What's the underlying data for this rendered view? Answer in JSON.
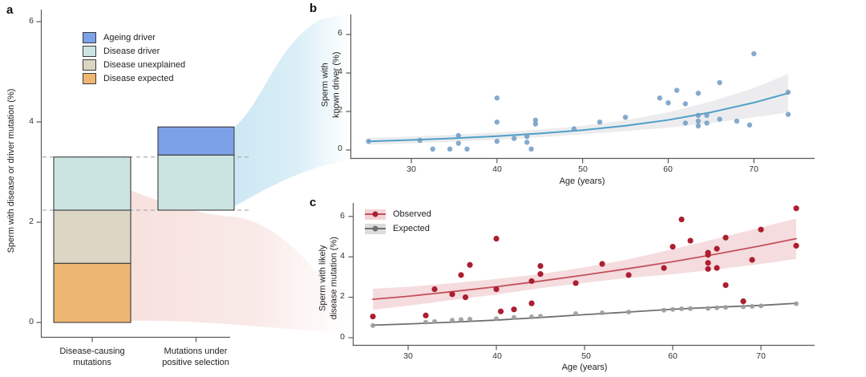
{
  "colors": {
    "ageing_driver": "#7CA1E8",
    "disease_driver": "#CBE4E2",
    "disease_unexplained": "#DBD5C4",
    "disease_expected": "#EDB671",
    "bar_border": "#3B3B3B",
    "axis": "#5A5A5A",
    "dashed_line": "#9C9C9C",
    "blue_line": "#4E9FC9",
    "blue_point": "#6E9BC4",
    "blue_band": "#E7E7EA",
    "red_line": "#C4515C",
    "red_point": "#AB1F30",
    "red_band": "#EDBFC3",
    "expected_line": "#6F6F6F",
    "expected_point": "#9B9B9B",
    "flow_blue": "#C3E4F2",
    "flow_pink": "#F5DCD8"
  },
  "panel_a": {
    "label": "a",
    "y_label": "Sperm with disease or driver mutation (%)",
    "y_ticks": [
      0,
      2,
      4,
      6
    ],
    "x_labels": [
      "Disease-causing\nmutations",
      "Mutations under\npositive selection"
    ],
    "legend": [
      {
        "label": "Ageing driver",
        "color": "#7CA1E8"
      },
      {
        "label": "Disease driver",
        "color": "#CBE4E2"
      },
      {
        "label": "Disease unexplained",
        "color": "#DBD5C4"
      },
      {
        "label": "Disease expected",
        "color": "#EDB671"
      }
    ]
  },
  "panel_b": {
    "label": "b",
    "y_label_lines": [
      "Sperm with",
      "known driver (%)"
    ],
    "x_label": "Age (years)",
    "y_ticks": [
      0,
      2,
      4,
      6
    ],
    "x_ticks": [
      30,
      40,
      50,
      60,
      70
    ]
  },
  "panel_c": {
    "label": "c",
    "y_label_lines": [
      "Sperm with likely",
      "disease mutation (%)"
    ],
    "x_label": "Age (years)",
    "y_ticks": [
      0,
      2,
      4,
      6
    ],
    "x_ticks": [
      30,
      40,
      50,
      60,
      70
    ],
    "legend": [
      {
        "label": "Observed",
        "band": "#F2D3D5",
        "line": "#C4515C",
        "point": "#AB1F30"
      },
      {
        "label": "Expected",
        "band": "#DCDCDC",
        "line": "#6F6F6F",
        "point": "#6F6F6F"
      }
    ]
  },
  "chart_data": [
    {
      "type": "bar",
      "panel": "a",
      "title": "",
      "ylabel": "Sperm with disease or driver mutation (%)",
      "ylim": [
        0,
        6
      ],
      "y_ticks": [
        0,
        2,
        4,
        6
      ],
      "categories": [
        "Disease-causing mutations",
        "Mutations under positive selection"
      ],
      "stacks": [
        {
          "segments": [
            {
              "name": "Disease expected",
              "from": 0,
              "to": 1.18
            },
            {
              "name": "Disease unexplained",
              "from": 1.18,
              "to": 2.24
            },
            {
              "name": "Disease driver",
              "from": 2.24,
              "to": 3.3
            }
          ]
        },
        {
          "segments": [
            {
              "name": "Disease driver",
              "from": 2.24,
              "to": 3.34
            },
            {
              "name": "Ageing driver",
              "from": 3.34,
              "to": 3.9
            }
          ]
        }
      ],
      "dashed_lines": [
        2.24,
        3.3
      ],
      "legend_position": "top-left-inside"
    },
    {
      "type": "scatter",
      "panel": "b",
      "xlabel": "Age (years)",
      "ylabel": "Sperm with known driver (%)",
      "xlim": [
        24,
        76
      ],
      "ylim": [
        0,
        6.5
      ],
      "x_ticks": [
        30,
        40,
        50,
        60,
        70
      ],
      "y_ticks": [
        0,
        2,
        4,
        6
      ],
      "grid": false,
      "points": [
        [
          25,
          0.45
        ],
        [
          31,
          0.5
        ],
        [
          32.5,
          0.05
        ],
        [
          34.5,
          0.05
        ],
        [
          35.5,
          0.75
        ],
        [
          35.5,
          0.35
        ],
        [
          36.5,
          0.05
        ],
        [
          40,
          2.7
        ],
        [
          40,
          1.45
        ],
        [
          40,
          0.45
        ],
        [
          42,
          0.6
        ],
        [
          43.5,
          0.7
        ],
        [
          43.5,
          0.4
        ],
        [
          44,
          0.05
        ],
        [
          44.5,
          1.55
        ],
        [
          44.5,
          1.35
        ],
        [
          49,
          1.1
        ],
        [
          52,
          1.45
        ],
        [
          55,
          1.7
        ],
        [
          59,
          2.7
        ],
        [
          60,
          2.45
        ],
        [
          61,
          3.1
        ],
        [
          62,
          2.4
        ],
        [
          62,
          1.4
        ],
        [
          63.5,
          2.95
        ],
        [
          63.5,
          1.8
        ],
        [
          63.5,
          1.5
        ],
        [
          63.5,
          1.25
        ],
        [
          64.5,
          1.8
        ],
        [
          64.5,
          1.4
        ],
        [
          66,
          3.5
        ],
        [
          66,
          1.6
        ],
        [
          68,
          1.5
        ],
        [
          69.5,
          1.3
        ],
        [
          70,
          5.0
        ],
        [
          74,
          3.0
        ],
        [
          74,
          1.85
        ]
      ],
      "trend": {
        "x": [
          25,
          30,
          35,
          40,
          45,
          50,
          55,
          60,
          65,
          70,
          74
        ],
        "y": [
          0.45,
          0.52,
          0.61,
          0.72,
          0.86,
          1.03,
          1.26,
          1.56,
          1.96,
          2.46,
          2.95
        ],
        "upper": [
          0.63,
          0.7,
          0.79,
          0.91,
          1.06,
          1.25,
          1.54,
          1.96,
          2.52,
          3.22,
          3.95
        ],
        "lower": [
          0.27,
          0.34,
          0.43,
          0.53,
          0.66,
          0.81,
          0.98,
          1.16,
          1.4,
          1.7,
          1.95
        ]
      }
    },
    {
      "type": "scatter",
      "panel": "c",
      "xlabel": "Age (years)",
      "ylabel": "Sperm with likely disease mutation (%)",
      "xlim": [
        24,
        76
      ],
      "ylim": [
        0,
        6.6
      ],
      "x_ticks": [
        30,
        40,
        50,
        60,
        70
      ],
      "y_ticks": [
        0,
        2,
        4,
        6
      ],
      "grid": false,
      "series": [
        {
          "name": "Observed",
          "points": [
            [
              26,
              1.05
            ],
            [
              32,
              1.1
            ],
            [
              33,
              2.4
            ],
            [
              35,
              2.15
            ],
            [
              36,
              3.1
            ],
            [
              36.5,
              2.0
            ],
            [
              37,
              3.6
            ],
            [
              40,
              4.9
            ],
            [
              40,
              2.4
            ],
            [
              40.5,
              1.3
            ],
            [
              42,
              1.4
            ],
            [
              44,
              2.8
            ],
            [
              44,
              1.7
            ],
            [
              45,
              3.55
            ],
            [
              45,
              3.15
            ],
            [
              49,
              2.7
            ],
            [
              52,
              3.65
            ],
            [
              55,
              3.1
            ],
            [
              59,
              3.45
            ],
            [
              60,
              4.5
            ],
            [
              61,
              5.85
            ],
            [
              62,
              4.8
            ],
            [
              64,
              4.2
            ],
            [
              64,
              4.1
            ],
            [
              64,
              3.7
            ],
            [
              64,
              3.4
            ],
            [
              65,
              4.4
            ],
            [
              65,
              3.45
            ],
            [
              66,
              4.95
            ],
            [
              66,
              2.6
            ],
            [
              68,
              1.8
            ],
            [
              69,
              3.85
            ],
            [
              70,
              5.35
            ],
            [
              74,
              6.4
            ],
            [
              74,
              4.55
            ]
          ],
          "trend": {
            "x": [
              26,
              30,
              35,
              40,
              45,
              50,
              55,
              60,
              65,
              70,
              74
            ],
            "y": [
              1.9,
              2.05,
              2.28,
              2.52,
              2.8,
              3.1,
              3.42,
              3.76,
              4.14,
              4.55,
              4.9
            ],
            "upper": [
              2.42,
              2.52,
              2.7,
              2.9,
              3.15,
              3.48,
              3.88,
              4.38,
              4.9,
              5.45,
              5.9
            ],
            "lower": [
              1.38,
              1.58,
              1.86,
              2.14,
              2.45,
              2.72,
              2.96,
              3.14,
              3.38,
              3.65,
              3.9
            ]
          }
        },
        {
          "name": "Expected",
          "points": [
            [
              26,
              0.6
            ],
            [
              32,
              0.77
            ],
            [
              33,
              0.8
            ],
            [
              35,
              0.87
            ],
            [
              36,
              0.9
            ],
            [
              37,
              0.92
            ],
            [
              40,
              0.94
            ],
            [
              42,
              1.0
            ],
            [
              44,
              1.03
            ],
            [
              45,
              1.06
            ],
            [
              49,
              1.19
            ],
            [
              52,
              1.23
            ],
            [
              55,
              1.27
            ],
            [
              59,
              1.36
            ],
            [
              60,
              1.4
            ],
            [
              61,
              1.43
            ],
            [
              62,
              1.44
            ],
            [
              64,
              1.45
            ],
            [
              65,
              1.48
            ],
            [
              66,
              1.5
            ],
            [
              68,
              1.53
            ],
            [
              69,
              1.55
            ],
            [
              70,
              1.57
            ],
            [
              74,
              1.68
            ]
          ],
          "trend": {
            "x": [
              26,
              30,
              35,
              40,
              45,
              50,
              55,
              60,
              65,
              70,
              74
            ],
            "y": [
              0.62,
              0.68,
              0.77,
              0.87,
              1.0,
              1.14,
              1.27,
              1.41,
              1.51,
              1.6,
              1.7
            ]
          }
        }
      ]
    }
  ]
}
